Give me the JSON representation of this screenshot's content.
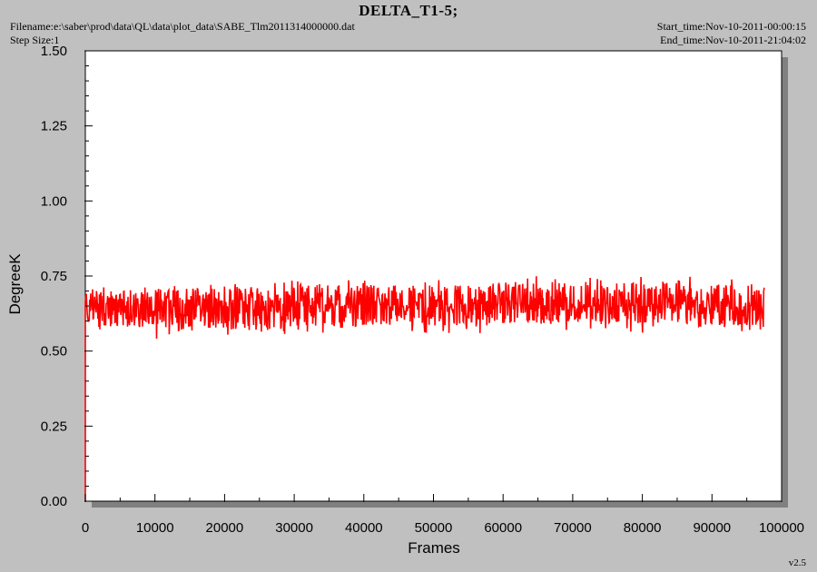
{
  "header": {
    "filename": "Filename:e:\\saber\\prod\\data\\QL\\data\\plot_data\\SABE_Tlm2011314000000.dat",
    "step_size": "Step Size:1",
    "start_time": "Start_time:Nov-10-2011-00:00:15",
    "end_time": "End_time:Nov-10-2011-21:04:02",
    "version": "v2.5"
  },
  "chart_data": {
    "type": "line",
    "title": "DELTA_T1-5;",
    "xlabel": "Frames",
    "ylabel": "DegreeK",
    "xlim": [
      0,
      100000
    ],
    "ylim": [
      0,
      1.5
    ],
    "x_ticks": [
      "0",
      "10000",
      "20000",
      "30000",
      "40000",
      "50000",
      "60000",
      "70000",
      "80000",
      "90000",
      "100000"
    ],
    "y_ticks": [
      "0.00",
      "0.25",
      "0.50",
      "0.75",
      "1.00",
      "1.25",
      "1.50"
    ],
    "grid": false,
    "series": [
      {
        "color": "#ff0000",
        "x_range": [
          0,
          97500
        ],
        "band_low": [
          0.58,
          0.57,
          0.57,
          0.58,
          0.58,
          0.58,
          0.59,
          0.59,
          0.59,
          0.58
        ],
        "band_high": [
          0.7,
          0.71,
          0.71,
          0.72,
          0.72,
          0.72,
          0.73,
          0.73,
          0.73,
          0.72
        ],
        "mean": 0.645
      }
    ]
  }
}
